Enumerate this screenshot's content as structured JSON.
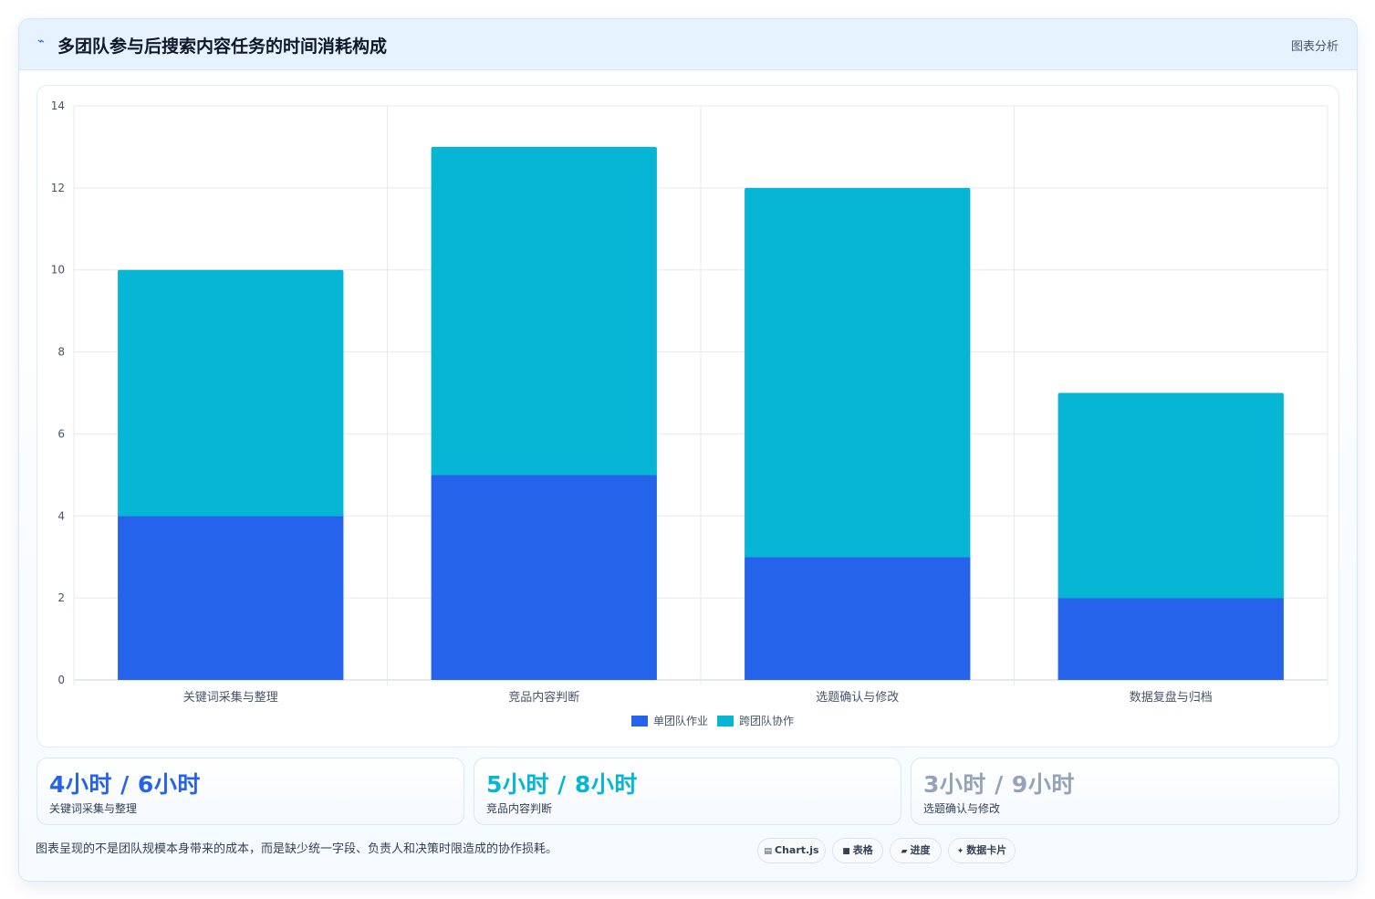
{
  "header": {
    "icon": "trend-line-icon",
    "title": "多团队参与后搜索内容任务的时间消耗构成",
    "action_label": "图表分析"
  },
  "colors": {
    "single_team": "#2563eb",
    "cross_team": "#06b6d4",
    "muted": "#94a3b8",
    "grid": "#e5e9ee",
    "axis_text": "#475569"
  },
  "chart_data": {
    "type": "bar",
    "stacked": true,
    "categories": [
      "关键词采集与整理",
      "竞品内容判断",
      "选题确认与修改",
      "数据复盘与归档"
    ],
    "series": [
      {
        "name": "单团队作业",
        "values": [
          4,
          5,
          3,
          2
        ],
        "color": "#2563eb"
      },
      {
        "name": "跨团队协作",
        "values": [
          6,
          8,
          9,
          5
        ],
        "color": "#06b6d4"
      }
    ],
    "ylim": [
      0,
      14
    ],
    "yticks": [
      "0",
      "2",
      "4",
      "6",
      "8",
      "10",
      "12",
      "14"
    ],
    "grid": true,
    "legend_position": "bottom"
  },
  "stats": [
    {
      "value": "4小时 / 6小时",
      "label": "关键词采集与整理",
      "color": "#2563eb"
    },
    {
      "value": "5小时 / 8小时",
      "label": "竞品内容判断",
      "color": "#06b6d4"
    },
    {
      "value": "3小时 / 9小时",
      "label": "选题确认与修改",
      "color": "#94a3b8"
    }
  ],
  "footer": {
    "note": "图表呈现的不是团队规模本身带来的成本，而是缺少统一字段、负责人和决策时限造成的协作损耗。",
    "pills": [
      {
        "icon": "chart-icon",
        "glyph": "▤",
        "label": "Chart.js"
      },
      {
        "icon": "table-icon",
        "glyph": "■",
        "label": "表格"
      },
      {
        "icon": "progress-icon",
        "glyph": "▰",
        "label": "进度"
      },
      {
        "icon": "sparkle-icon",
        "glyph": "✦",
        "label": "数据卡片"
      }
    ]
  }
}
